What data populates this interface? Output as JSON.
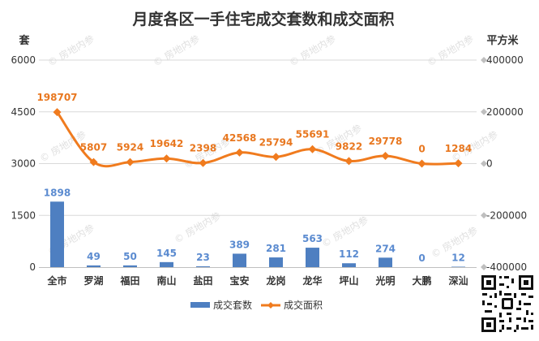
{
  "chart_data": {
    "type": "bar+line",
    "title": "月度各区一手住宅成交套数和成交面积",
    "y_left_unit": "套",
    "y_right_unit": "平方米",
    "y_left_ticks": [
      "0",
      "1500",
      "3000",
      "4500",
      "6000"
    ],
    "y_right_ticks": [
      "-400000",
      "-200000",
      "0",
      "200000",
      "400000"
    ],
    "ylim_left": [
      0,
      6000
    ],
    "ylim_right": [
      -400000,
      400000
    ],
    "categories": [
      "全市",
      "罗湖",
      "福田",
      "南山",
      "盐田",
      "宝安",
      "龙岗",
      "龙华",
      "坪山",
      "光明",
      "大鹏",
      "深汕"
    ],
    "series": [
      {
        "name": "成交套数",
        "type": "bar",
        "axis": "left",
        "color": "#4E7FC1",
        "values": [
          1898,
          49,
          50,
          145,
          23,
          389,
          281,
          563,
          112,
          274,
          0,
          12
        ]
      },
      {
        "name": "成交面积",
        "type": "line",
        "axis": "right",
        "color": "#F07B1E",
        "values": [
          198707,
          5807,
          5924,
          19642,
          2398,
          42568,
          25794,
          55691,
          9822,
          29778,
          0,
          1284
        ]
      }
    ],
    "grid": true,
    "legend": "bottom-center",
    "watermark": "房地内参"
  }
}
